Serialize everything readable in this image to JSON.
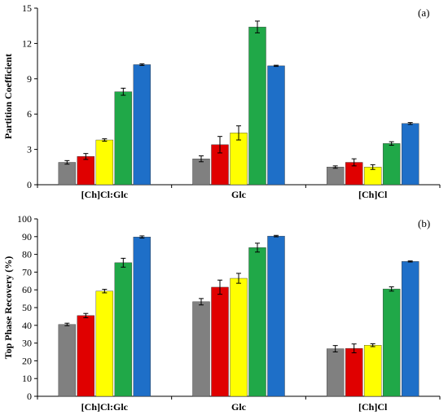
{
  "colors": {
    "series": [
      "#808080",
      "#e00000",
      "#ffff00",
      "#20a848",
      "#1e6fc8"
    ],
    "error_bar": "#000000",
    "axis": "#000000"
  },
  "chart_data": [
    {
      "type": "bar",
      "panel_label": "(a)",
      "title": "",
      "xlabel": "",
      "ylabel": "Partition Coefficient",
      "ylim": [
        0,
        15
      ],
      "yticks": [
        0,
        3,
        6,
        9,
        12,
        15
      ],
      "grid": false,
      "categories": [
        "[Ch]Cl:Glc",
        "Glc",
        "[Ch]Cl"
      ],
      "series": [
        {
          "values": [
            1.9,
            2.2,
            1.5
          ],
          "errors": [
            0.15,
            0.25,
            0.1
          ]
        },
        {
          "values": [
            2.4,
            3.4,
            1.9
          ],
          "errors": [
            0.25,
            0.7,
            0.3
          ]
        },
        {
          "values": [
            3.8,
            4.4,
            1.5
          ],
          "errors": [
            0.1,
            0.6,
            0.2
          ]
        },
        {
          "values": [
            7.9,
            13.4,
            3.5
          ],
          "errors": [
            0.3,
            0.5,
            0.15
          ]
        },
        {
          "values": [
            10.2,
            10.1,
            5.2
          ],
          "errors": [
            0.07,
            0.05,
            0.08
          ]
        }
      ]
    },
    {
      "type": "bar",
      "panel_label": "(b)",
      "title": "",
      "xlabel": "",
      "ylabel": "Top Phase Recovery (%)",
      "ylim": [
        0,
        100
      ],
      "yticks": [
        0,
        10,
        20,
        30,
        40,
        50,
        60,
        70,
        80,
        90,
        100
      ],
      "grid": false,
      "categories": [
        "[Ch]Cl:Glc",
        "Glc",
        "[Ch]Cl"
      ],
      "series": [
        {
          "values": [
            40.5,
            53.3,
            26.8
          ],
          "errors": [
            0.7,
            1.8,
            1.8
          ]
        },
        {
          "values": [
            45.5,
            61.5,
            27.0
          ],
          "errors": [
            1.2,
            4.0,
            2.5
          ]
        },
        {
          "values": [
            59.3,
            66.5,
            28.8
          ],
          "errors": [
            1.0,
            2.8,
            0.8
          ]
        },
        {
          "values": [
            75.3,
            83.8,
            60.5
          ],
          "errors": [
            2.5,
            2.5,
            1.2
          ]
        },
        {
          "values": [
            89.8,
            90.3,
            76.0
          ],
          "errors": [
            0.6,
            0.4,
            0.3
          ]
        }
      ]
    }
  ]
}
